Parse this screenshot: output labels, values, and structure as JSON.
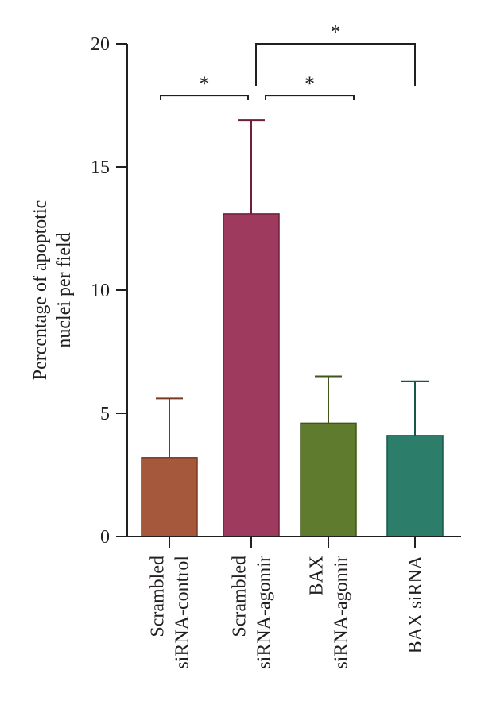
{
  "chart_data": {
    "type": "bar",
    "title": "",
    "ylabel": "Percentage of apoptotic nuclei per field",
    "ylabel_lines": [
      "Percentage of apoptotic",
      "nuclei per field"
    ],
    "xlabel": "",
    "ylim": [
      0,
      20
    ],
    "yticks": [
      0,
      5,
      10,
      15,
      20
    ],
    "grid": false,
    "categories": [
      {
        "name": "Scrambled siRNA-control",
        "lines": [
          "Scrambled",
          "siRNA-control"
        ]
      },
      {
        "name": "Scrambled siRNA-agomir",
        "lines": [
          "Scrambled",
          "siRNA-agomir"
        ]
      },
      {
        "name": "BAX siRNA-agomir",
        "lines": [
          "BAX",
          "siRNA-agomir"
        ]
      },
      {
        "name": "BAX siRNA",
        "lines": [
          "BAX siRNA"
        ]
      }
    ],
    "values": [
      3.2,
      13.1,
      4.6,
      4.1
    ],
    "error_upper": [
      5.6,
      16.9,
      6.5,
      6.3
    ],
    "colors": [
      "#a5583c",
      "#9e3a5d",
      "#5e7b2e",
      "#2c7e6a"
    ],
    "error_colors": [
      "#7a3a22",
      "#6e1f3c",
      "#3e5618",
      "#175748"
    ],
    "significance": [
      {
        "from": 0,
        "to": 1,
        "level": 17.9,
        "label": "*"
      },
      {
        "from": 1,
        "to": 2,
        "level": 17.9,
        "label": "*"
      },
      {
        "from": 1,
        "to": 3,
        "level": 20,
        "label": "*"
      }
    ]
  }
}
